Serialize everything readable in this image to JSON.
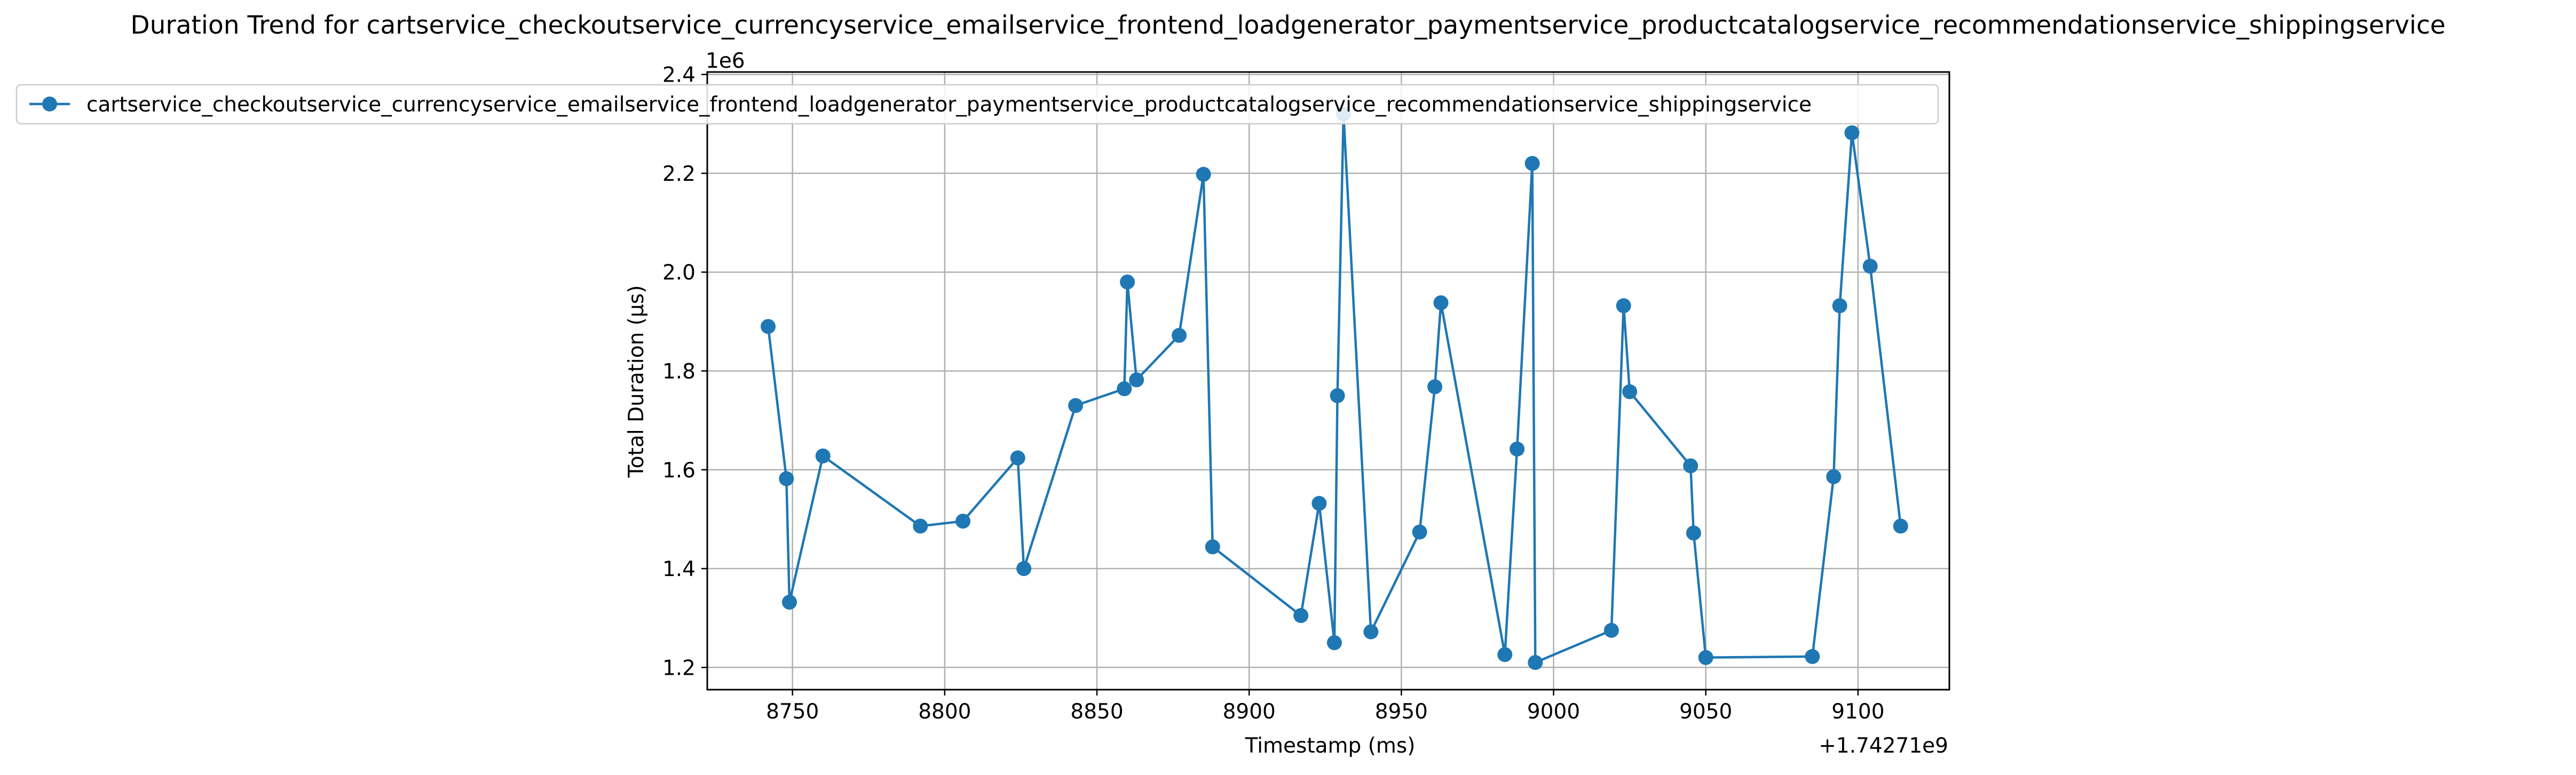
{
  "chart_data": {
    "type": "line",
    "title": "Duration Trend for cartservice_checkoutservice_currencyservice_emailservice_frontend_loadgenerator_paymentservice_productcatalogservice_recommendationservice_shippingservice",
    "xlabel": "Timestamp (ms)",
    "ylabel": "Total Duration (µs)",
    "x_offset_label": "+1.74271e9",
    "y_scale_label": "1e6",
    "xlim": [
      8722,
      9130
    ],
    "ylim": [
      1.155,
      2.405
    ],
    "x_ticks": [
      8750,
      8800,
      8850,
      8900,
      8950,
      9000,
      9050,
      9100
    ],
    "x_tick_labels": [
      "8750",
      "8800",
      "8850",
      "8900",
      "8950",
      "9000",
      "9050",
      "9100"
    ],
    "y_ticks": [
      1.2,
      1.4,
      1.6,
      1.8,
      2.0,
      2.2,
      2.4
    ],
    "y_tick_labels": [
      "1.2",
      "1.4",
      "1.6",
      "1.8",
      "2.0",
      "2.2",
      "2.4"
    ],
    "grid": true,
    "legend_position": "top-left",
    "color": "#1f77b4",
    "series": [
      {
        "name": "cartservice_checkoutservice_currencyservice_emailservice_frontend_loadgenerator_paymentservice_productcatalogservice_recommendationservice_shippingservice",
        "x": [
          8742,
          8748,
          8749,
          8760,
          8792,
          8806,
          8824,
          8826,
          8843,
          8859,
          8860,
          8863,
          8877,
          8885,
          8888,
          8917,
          8923,
          8928,
          8929,
          8931,
          8940,
          8956,
          8961,
          8963,
          8984,
          8988,
          8993,
          8994,
          9019,
          9023,
          9025,
          9045,
          9046,
          9050,
          9085,
          9092,
          9094,
          9098,
          9104,
          9114
        ],
        "y": [
          1.89,
          1.582,
          1.332,
          1.628,
          1.486,
          1.496,
          1.624,
          1.4,
          1.73,
          1.764,
          1.98,
          1.782,
          1.872,
          2.198,
          1.444,
          1.305,
          1.532,
          1.25,
          1.75,
          2.32,
          1.272,
          1.474,
          1.768,
          1.938,
          1.226,
          1.642,
          2.22,
          1.21,
          1.275,
          1.932,
          1.758,
          1.608,
          1.472,
          1.22,
          1.222,
          1.586,
          1.932,
          2.282,
          2.012,
          1.486
        ]
      }
    ]
  }
}
